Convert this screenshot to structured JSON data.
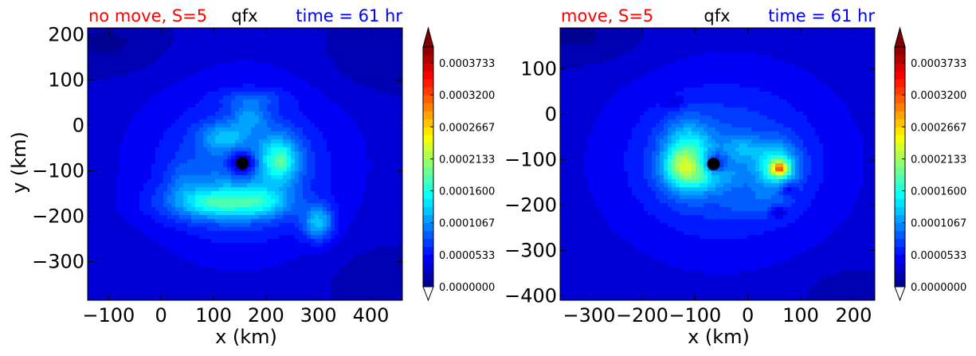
{
  "figure": {
    "background": "#ffffff"
  },
  "chart_data": [
    {
      "type": "heatmap",
      "title_left": "no move, S=5",
      "title_center": "qfx",
      "title_right": "time = 61 hr",
      "title_left_color": "#ff0000",
      "title_center_color": "#000000",
      "title_right_color": "#0000ff",
      "xlabel": "x (km)",
      "ylabel": "y (km)",
      "xlim": [
        -140,
        460
      ],
      "ylim": [
        -385,
        215
      ],
      "xticks": [
        -100,
        0,
        100,
        200,
        300,
        400
      ],
      "xtick_labels": [
        "−100",
        "0",
        "100",
        "200",
        "300",
        "400"
      ],
      "yticks": [
        200,
        100,
        0,
        -100,
        -200,
        -300
      ],
      "ytick_labels": [
        "200",
        "100",
        "0",
        "−100",
        "−200",
        "−300"
      ],
      "center_marker": {
        "x": 155,
        "y": -83,
        "color": "#000000"
      },
      "colorbar": {
        "min": 0.0,
        "max": 0.0004,
        "extend": "both",
        "ticks": [
          0.0,
          5.33e-05,
          0.0001067,
          0.00016,
          0.0002133,
          0.0002667,
          0.00032,
          0.0003733
        ],
        "tick_labels": [
          "0.0000000",
          "0.0000533",
          "0.0001067",
          "0.0001600",
          "0.0002133",
          "0.0002667",
          "0.0003200",
          "0.0003733"
        ]
      },
      "field": {
        "background": 3e-05,
        "features": [
          {
            "x": -100,
            "y": 180,
            "rx": 120,
            "ry": 70,
            "v": -2e-05
          },
          {
            "x": 420,
            "y": 160,
            "rx": 110,
            "ry": 90,
            "v": -1.8e-05
          },
          {
            "x": 430,
            "y": -340,
            "rx": 120,
            "ry": 80,
            "v": -1.4e-05
          },
          {
            "x": 160,
            "y": -80,
            "rx": 210,
            "ry": 200,
            "v": 3.2e-05
          },
          {
            "x": 150,
            "y": -110,
            "rx": 130,
            "ry": 130,
            "v": 3.5e-05
          },
          {
            "x": 170,
            "y": 20,
            "rx": 35,
            "ry": 30,
            "v": 4.5e-05
          },
          {
            "x": 120,
            "y": -25,
            "rx": 45,
            "ry": 30,
            "v": 5e-05
          },
          {
            "x": 225,
            "y": -75,
            "rx": 40,
            "ry": 55,
            "v": 8e-05
          },
          {
            "x": 230,
            "y": -80,
            "rx": 18,
            "ry": 25,
            "v": 3e-05
          },
          {
            "x": 110,
            "y": -170,
            "rx": 110,
            "ry": 40,
            "v": 7e-05
          },
          {
            "x": 100,
            "y": -170,
            "rx": 50,
            "ry": 22,
            "v": 3e-05
          },
          {
            "x": 190,
            "y": -170,
            "rx": 50,
            "ry": 28,
            "v": 4.5e-05
          },
          {
            "x": 300,
            "y": -215,
            "rx": 30,
            "ry": 38,
            "v": 8e-05
          },
          {
            "x": 175,
            "y": 60,
            "rx": 60,
            "ry": 20,
            "v": 3e-05
          },
          {
            "x": 155,
            "y": -83,
            "rx": 28,
            "ry": 28,
            "v": -8e-05
          },
          {
            "x": 40,
            "y": -120,
            "rx": 30,
            "ry": 40,
            "v": 2e-05
          }
        ]
      }
    },
    {
      "type": "heatmap",
      "title_left": "move, S=5",
      "title_center": "qfx",
      "title_right": "time = 61 hr",
      "title_left_color": "#ff0000",
      "title_center_color": "#000000",
      "title_right_color": "#0000ff",
      "xlabel": "x (km)",
      "ylabel": "",
      "xlim": [
        -355,
        240
      ],
      "ylim": [
        -410,
        190
      ],
      "xticks": [
        -300,
        -200,
        -100,
        0,
        100,
        200
      ],
      "xtick_labels": [
        "−300",
        "−200",
        "−100",
        "0",
        "100",
        "200"
      ],
      "yticks": [
        100,
        0,
        -100,
        -200,
        -300,
        -400
      ],
      "ytick_labels": [
        "100",
        "0",
        "−100",
        "−200",
        "−300",
        "−400"
      ],
      "center_marker": {
        "x": -65,
        "y": -110,
        "color": "#000000"
      },
      "colorbar": {
        "min": 0.0,
        "max": 0.0004,
        "extend": "both",
        "ticks": [
          0.0,
          5.33e-05,
          0.0001067,
          0.00016,
          0.0002133,
          0.0002667,
          0.00032,
          0.0003733
        ],
        "tick_labels": [
          "0.0000000",
          "0.0000533",
          "0.0001067",
          "0.0001600",
          "0.0002133",
          "0.0002667",
          "0.0003200",
          "0.0003733"
        ]
      },
      "field": {
        "background": 3e-05,
        "features": [
          {
            "x": -320,
            "y": 170,
            "rx": 120,
            "ry": 60,
            "v": -2e-05
          },
          {
            "x": 200,
            "y": -390,
            "rx": 120,
            "ry": 60,
            "v": -1.2e-05
          },
          {
            "x": -40,
            "y": -110,
            "rx": 230,
            "ry": 220,
            "v": 3e-05
          },
          {
            "x": -50,
            "y": -100,
            "rx": 160,
            "ry": 140,
            "v": 3e-05
          },
          {
            "x": -115,
            "y": -95,
            "rx": 45,
            "ry": 70,
            "v": 0.0001
          },
          {
            "x": -90,
            "y": -130,
            "rx": 60,
            "ry": 35,
            "v": 6e-05
          },
          {
            "x": -130,
            "y": -110,
            "rx": 22,
            "ry": 32,
            "v": 3e-05
          },
          {
            "x": 55,
            "y": -115,
            "rx": 40,
            "ry": 50,
            "v": 9e-05
          },
          {
            "x": 60,
            "y": -120,
            "rx": 18,
            "ry": 18,
            "v": 0.00013
          },
          {
            "x": 60,
            "y": -120,
            "rx": 8,
            "ry": 8,
            "v": 4e-05
          },
          {
            "x": -10,
            "y": -75,
            "rx": 35,
            "ry": 25,
            "v": 3.5e-05
          },
          {
            "x": 20,
            "y": -200,
            "rx": 60,
            "ry": 30,
            "v": 2e-05
          },
          {
            "x": -65,
            "y": -110,
            "rx": 25,
            "ry": 25,
            "v": -8e-05
          },
          {
            "x": 75,
            "y": -165,
            "rx": 15,
            "ry": 15,
            "v": -4e-05
          },
          {
            "x": 55,
            "y": -215,
            "rx": 15,
            "ry": 12,
            "v": -4e-05
          },
          {
            "x": -140,
            "y": 25,
            "rx": 18,
            "ry": 12,
            "v": -3e-05
          }
        ]
      }
    }
  ]
}
